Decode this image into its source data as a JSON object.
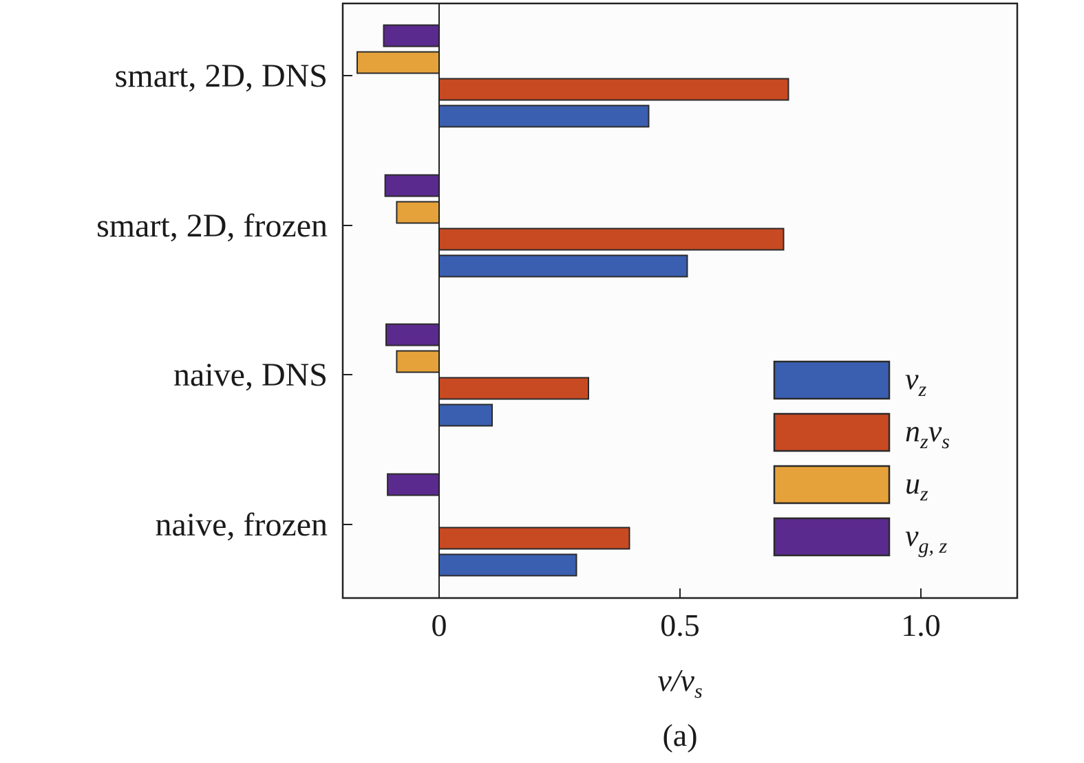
{
  "chart_data": {
    "type": "bar",
    "orientation": "horizontal",
    "categories": [
      "smart, 2D, DNS",
      "smart, 2D, frozen",
      "naive, DNS",
      "naive, frozen"
    ],
    "series": [
      {
        "name": "v_z",
        "color": "#3a5fb0",
        "values": [
          0.435,
          0.515,
          0.11,
          0.285
        ]
      },
      {
        "name": "n_z v_s",
        "color": "#c84a22",
        "values": [
          0.725,
          0.715,
          0.31,
          0.395
        ]
      },
      {
        "name": "u_z",
        "color": "#e6a23a",
        "values": [
          -0.17,
          -0.088,
          -0.088,
          0.0
        ]
      },
      {
        "name": "v_g,z",
        "color": "#5b2a8e",
        "values": [
          -0.115,
          -0.112,
          -0.11,
          -0.107
        ]
      }
    ],
    "xlim": [
      -0.2,
      1.2
    ],
    "xticks": [
      0,
      0.5,
      1.0
    ],
    "xtick_labels": [
      "0",
      "0.5",
      "1.0"
    ],
    "xlabel": "v/v_s",
    "legend_position": "bottom-right",
    "caption": "(a)"
  }
}
